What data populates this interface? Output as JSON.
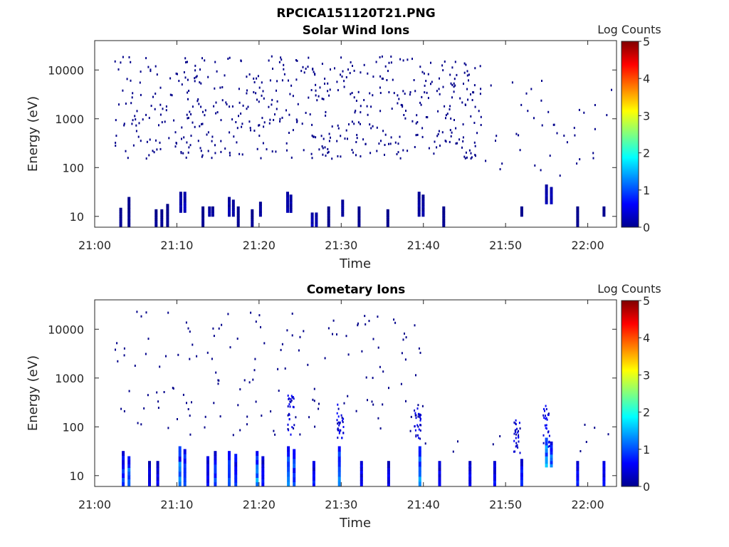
{
  "figure_title": "RPCICA151120T21.PNG",
  "chart_data": [
    {
      "type": "heatmap",
      "title": "Solar Wind Ions",
      "xlabel": "Time",
      "ylabel": "Energy (eV)",
      "x_ticks": [
        "21:00",
        "21:10",
        "21:20",
        "21:30",
        "21:40",
        "21:50",
        "22:00"
      ],
      "y_ticks": [
        "10",
        "100",
        "1000",
        "10000"
      ],
      "y_scale": "log",
      "y_range_ev": [
        6,
        40000
      ],
      "x_range": [
        "21:00",
        "22:04"
      ],
      "colorbar": {
        "label": "Log Counts",
        "ticks": [
          "0",
          "1",
          "2",
          "3",
          "4",
          "5"
        ],
        "range": [
          0,
          5
        ],
        "colormap": "jet"
      },
      "grid": false,
      "description_note_free": true,
      "sparse_background": {
        "start_min": 2.3,
        "end_min": 47,
        "log_e_min": 2.2,
        "log_e_max": 4.3,
        "count": 560,
        "level": 0.05
      },
      "sparse_tail": {
        "start_min": 47,
        "end_min": 63.5,
        "log_e_min": 1.8,
        "log_e_max": 3.8,
        "count": 40,
        "level": 0.05
      },
      "columns": [
        {
          "t": 3.0,
          "e_lo": 6,
          "e_hi": 15,
          "level": 0.1
        },
        {
          "t": 4.0,
          "e_lo": 6,
          "e_hi": 25,
          "level": 0.1
        },
        {
          "t": 7.3,
          "e_lo": 6,
          "e_hi": 14,
          "level": 0.1
        },
        {
          "t": 8.0,
          "e_lo": 6,
          "e_hi": 14,
          "level": 0.1
        },
        {
          "t": 8.7,
          "e_lo": 6,
          "e_hi": 18,
          "level": 0.1
        },
        {
          "t": 10.3,
          "e_lo": 12,
          "e_hi": 32,
          "level": 0.25
        },
        {
          "t": 10.8,
          "e_lo": 12,
          "e_hi": 32,
          "level": 0.3
        },
        {
          "t": 13.0,
          "e_lo": 6,
          "e_hi": 16,
          "level": 0.1
        },
        {
          "t": 13.8,
          "e_lo": 10,
          "e_hi": 16,
          "level": 0.25
        },
        {
          "t": 14.2,
          "e_lo": 10,
          "e_hi": 16,
          "level": 0.2
        },
        {
          "t": 16.2,
          "e_lo": 10,
          "e_hi": 25,
          "level": 0.25
        },
        {
          "t": 16.7,
          "e_lo": 10,
          "e_hi": 22,
          "level": 0.2
        },
        {
          "t": 17.3,
          "e_lo": 6,
          "e_hi": 16,
          "level": 0.1
        },
        {
          "t": 19.0,
          "e_lo": 6,
          "e_hi": 14,
          "level": 0.1
        },
        {
          "t": 20.0,
          "e_lo": 10,
          "e_hi": 20,
          "level": 0.2
        },
        {
          "t": 23.3,
          "e_lo": 12,
          "e_hi": 32,
          "level": 0.3
        },
        {
          "t": 23.7,
          "e_lo": 12,
          "e_hi": 28,
          "level": 0.25
        },
        {
          "t": 26.3,
          "e_lo": 6,
          "e_hi": 12,
          "level": 0.3
        },
        {
          "t": 26.8,
          "e_lo": 6,
          "e_hi": 12,
          "level": 0.3
        },
        {
          "t": 28.3,
          "e_lo": 6,
          "e_hi": 16,
          "level": 0.1
        },
        {
          "t": 30.0,
          "e_lo": 10,
          "e_hi": 22,
          "level": 0.2
        },
        {
          "t": 32.0,
          "e_lo": 6,
          "e_hi": 16,
          "level": 0.1
        },
        {
          "t": 35.5,
          "e_lo": 6,
          "e_hi": 14,
          "level": 0.1
        },
        {
          "t": 39.3,
          "e_lo": 10,
          "e_hi": 32,
          "level": 0.2
        },
        {
          "t": 39.8,
          "e_lo": 10,
          "e_hi": 28,
          "level": 0.2
        },
        {
          "t": 42.3,
          "e_lo": 6,
          "e_hi": 16,
          "level": 0.1
        },
        {
          "t": 51.8,
          "e_lo": 10,
          "e_hi": 16,
          "level": 0.1
        },
        {
          "t": 54.8,
          "e_lo": 18,
          "e_hi": 45,
          "level": 0.3
        },
        {
          "t": 55.4,
          "e_lo": 18,
          "e_hi": 40,
          "level": 0.3
        },
        {
          "t": 58.6,
          "e_lo": 6,
          "e_hi": 16,
          "level": 0.1
        },
        {
          "t": 61.8,
          "e_lo": 10,
          "e_hi": 16,
          "level": 0.1
        }
      ]
    },
    {
      "type": "heatmap",
      "title": "Cometary Ions",
      "xlabel": "Time",
      "ylabel": "Energy (eV)",
      "x_ticks": [
        "21:00",
        "21:10",
        "21:20",
        "21:30",
        "21:40",
        "21:50",
        "22:00"
      ],
      "y_ticks": [
        "10",
        "100",
        "1000",
        "10000"
      ],
      "y_scale": "log",
      "y_range_ev": [
        6,
        40000
      ],
      "x_range": [
        "21:00",
        "22:04"
      ],
      "colorbar": {
        "label": "Log Counts",
        "ticks": [
          "0",
          "1",
          "2",
          "3",
          "4",
          "5"
        ],
        "range": [
          0,
          5
        ],
        "colormap": "jet"
      },
      "grid": false,
      "sparse_background": {
        "start_min": 2.3,
        "end_min": 40,
        "log_e_min": 1.8,
        "log_e_max": 4.4,
        "count": 150,
        "level": 0.05
      },
      "sparse_tail": {
        "start_min": 40,
        "end_min": 63.5,
        "log_e_min": 1.5,
        "log_e_max": 2.4,
        "count": 12,
        "level": 0.05
      },
      "columns": [
        {
          "t": 3.3,
          "e_lo": 6,
          "e_hi": 32,
          "level": 0.9
        },
        {
          "t": 4.0,
          "e_lo": 6,
          "e_hi": 25,
          "level": 1.2
        },
        {
          "t": 6.5,
          "e_lo": 6,
          "e_hi": 20,
          "level": 0.6
        },
        {
          "t": 7.5,
          "e_lo": 6,
          "e_hi": 20,
          "level": 0.5
        },
        {
          "t": 10.2,
          "e_lo": 6,
          "e_hi": 40,
          "level": 1.3
        },
        {
          "t": 10.8,
          "e_lo": 6,
          "e_hi": 35,
          "level": 1.1
        },
        {
          "t": 13.6,
          "e_lo": 6,
          "e_hi": 25,
          "level": 0.8
        },
        {
          "t": 14.5,
          "e_lo": 6,
          "e_hi": 32,
          "level": 0.9
        },
        {
          "t": 16.2,
          "e_lo": 6,
          "e_hi": 32,
          "level": 1.1
        },
        {
          "t": 17.0,
          "e_lo": 6,
          "e_hi": 28,
          "level": 1.0
        },
        {
          "t": 19.6,
          "e_lo": 6,
          "e_hi": 32,
          "level": 1.2
        },
        {
          "t": 20.3,
          "e_lo": 6,
          "e_hi": 25,
          "level": 0.7
        },
        {
          "t": 23.4,
          "e_lo": 6,
          "e_hi": 40,
          "level": 1.4
        },
        {
          "t": 24.1,
          "e_lo": 6,
          "e_hi": 35,
          "level": 1.1
        },
        {
          "t": 26.5,
          "e_lo": 6,
          "e_hi": 20,
          "level": 0.7
        },
        {
          "t": 29.6,
          "e_lo": 6,
          "e_hi": 40,
          "level": 1.3
        },
        {
          "t": 32.3,
          "e_lo": 6,
          "e_hi": 20,
          "level": 0.6
        },
        {
          "t": 35.6,
          "e_lo": 6,
          "e_hi": 20,
          "level": 0.6
        },
        {
          "t": 39.4,
          "e_lo": 6,
          "e_hi": 40,
          "level": 1.3
        },
        {
          "t": 41.8,
          "e_lo": 6,
          "e_hi": 20,
          "level": 0.6
        },
        {
          "t": 45.5,
          "e_lo": 6,
          "e_hi": 20,
          "level": 0.6
        },
        {
          "t": 48.5,
          "e_lo": 6,
          "e_hi": 20,
          "level": 0.6
        },
        {
          "t": 51.8,
          "e_lo": 6,
          "e_hi": 22,
          "level": 0.8
        },
        {
          "t": 54.8,
          "e_lo": 15,
          "e_hi": 60,
          "level": 1.6
        },
        {
          "t": 55.4,
          "e_lo": 15,
          "e_hi": 50,
          "level": 1.3
        },
        {
          "t": 58.6,
          "e_lo": 6,
          "e_hi": 20,
          "level": 0.7
        },
        {
          "t": 61.8,
          "e_lo": 6,
          "e_hi": 20,
          "level": 0.7
        }
      ],
      "plumes": [
        {
          "t": 23.8,
          "e_lo": 60,
          "e_hi": 500,
          "level": 0.1
        },
        {
          "t": 29.8,
          "e_lo": 60,
          "e_hi": 300,
          "level": 0.1
        },
        {
          "t": 39.2,
          "e_lo": 60,
          "e_hi": 250,
          "level": 0.1
        },
        {
          "t": 51.3,
          "e_lo": 30,
          "e_hi": 150,
          "level": 0.1
        },
        {
          "t": 54.9,
          "e_lo": 40,
          "e_hi": 350,
          "level": 0.15
        }
      ]
    }
  ]
}
